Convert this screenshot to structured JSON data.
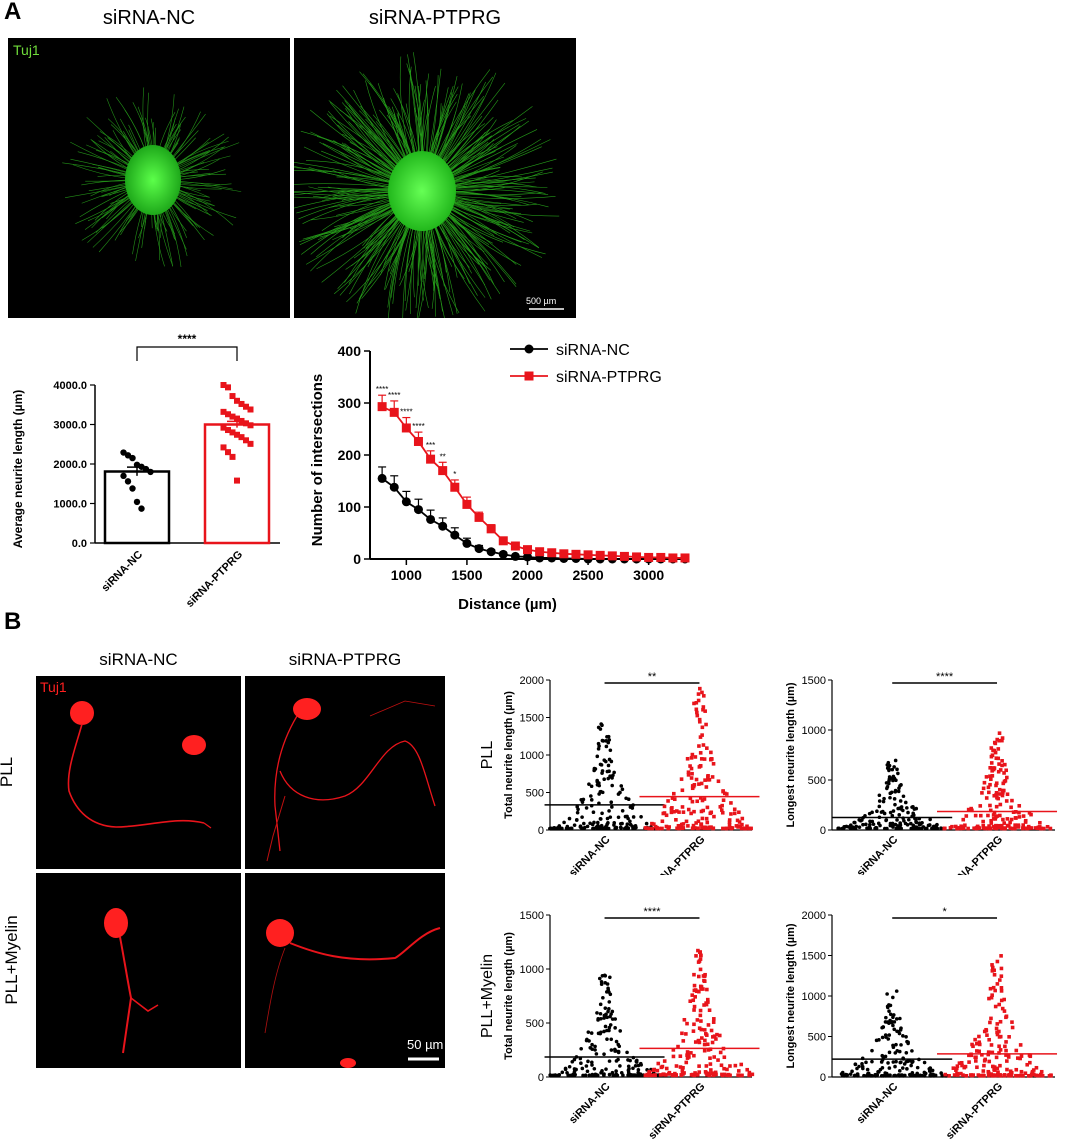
{
  "panels": {
    "A": {
      "letter": "A",
      "images": [
        {
          "title": "siRNA-NC",
          "stain": "Tuj1"
        },
        {
          "title": "siRNA-PTPRG",
          "scale_bar": "500 µm"
        }
      ]
    },
    "B": {
      "letter": "B",
      "columns": [
        "siRNA-NC",
        "siRNA-PTPRG"
      ],
      "rows": [
        "PLL",
        "PLL+Myelin"
      ],
      "stain": "Tuj1",
      "scale_bar": "50 µm"
    }
  },
  "colors": {
    "nc": "#000000",
    "ptprg": "#e8141b",
    "tuj1_green": "#35d12a",
    "tuj1_red": "#e8141b"
  },
  "chart_data": [
    {
      "id": "bar",
      "type": "bar",
      "ylabel": "Average neurite length (µm)",
      "categories": [
        "siRNA-NC",
        "siRNA-PTPRG"
      ],
      "values": [
        1810,
        3000
      ],
      "sem": [
        110,
        80
      ],
      "ylim": [
        0,
        4000
      ],
      "yticks": [
        "0.0",
        "1000.0",
        "2000.0",
        "3000.0",
        "4000.0"
      ],
      "significance": "****",
      "points_nc": [
        2290,
        2220,
        2150,
        1980,
        1930,
        1870,
        1800,
        1700,
        1560,
        1380,
        1040,
        870
      ],
      "points_ptprg": [
        4000,
        3940,
        3720,
        3600,
        3520,
        3450,
        3380,
        3320,
        3260,
        3200,
        3150,
        3090,
        3030,
        2980,
        2920,
        2860,
        2800,
        2740,
        2680,
        2600,
        2510,
        2420,
        2300,
        2180,
        1580
      ]
    },
    {
      "id": "sholl",
      "type": "line",
      "xlabel": "Distance (µm)",
      "ylabel": "Number of intersections",
      "xlim": [
        700,
        3300
      ],
      "ylim": [
        0,
        400
      ],
      "xticks": [
        "1000",
        "1500",
        "2000",
        "2500",
        "3000"
      ],
      "yticks": [
        "0",
        "100",
        "200",
        "300",
        "400"
      ],
      "x": [
        800,
        900,
        1000,
        1100,
        1200,
        1300,
        1400,
        1500,
        1600,
        1700,
        1800,
        1900,
        2000,
        2100,
        2200,
        2300,
        2400,
        2500,
        2600,
        2700,
        2800,
        2900,
        3000,
        3100,
        3200,
        3300
      ],
      "series": [
        {
          "name": "siRNA-NC",
          "values": [
            155,
            138,
            110,
            95,
            76,
            63,
            46,
            30,
            20,
            14,
            9,
            5,
            4,
            2,
            2,
            1,
            1,
            0,
            0,
            0,
            0,
            0,
            0,
            0,
            0,
            0
          ],
          "err": [
            22,
            22,
            20,
            20,
            18,
            16,
            14,
            10,
            6,
            4,
            3,
            2,
            2,
            1,
            1,
            1,
            0,
            0,
            0,
            0,
            0,
            0,
            0,
            0,
            0,
            0
          ]
        },
        {
          "name": "siRNA-PTPRG",
          "values": [
            293,
            282,
            252,
            226,
            192,
            170,
            138,
            105,
            80,
            58,
            35,
            25,
            18,
            14,
            12,
            10,
            9,
            8,
            7,
            6,
            5,
            4,
            3,
            3,
            2,
            2
          ],
          "err": [
            22,
            22,
            20,
            18,
            16,
            16,
            14,
            14,
            10,
            8,
            6,
            4,
            3,
            3,
            2,
            2,
            2,
            1,
            1,
            1,
            1,
            1,
            1,
            1,
            1,
            1
          ]
        }
      ],
      "annotations": [
        "****",
        "****",
        "****",
        "****",
        "***",
        "**",
        "*"
      ]
    },
    {
      "id": "pll_total",
      "type": "scatter",
      "ylabel": "Total neurite length (µm)",
      "row_label": "PLL",
      "categories": [
        "siRNA-NC",
        "siRNA-PTPRG"
      ],
      "ylim": [
        0,
        2000
      ],
      "yticks": [
        "0",
        "500",
        "1000",
        "1500",
        "2000"
      ],
      "means": [
        335,
        445
      ],
      "significance": "**",
      "ranges": [
        [
          20,
          1420
        ],
        [
          20,
          1900
        ]
      ]
    },
    {
      "id": "pll_longest",
      "type": "scatter",
      "ylabel": "Longest neurite length (µm)",
      "categories": [
        "siRNA-NC",
        "siRNA-PTPRG"
      ],
      "ylim": [
        0,
        1500
      ],
      "yticks": [
        "0",
        "500",
        "1000",
        "1500"
      ],
      "means": [
        125,
        185
      ],
      "significance": "****",
      "ranges": [
        [
          15,
          720
        ],
        [
          15,
          970
        ]
      ]
    },
    {
      "id": "myelin_total",
      "type": "scatter",
      "ylabel": "Total neurite length (µm)",
      "row_label": "PLL+Myelin",
      "categories": [
        "siRNA-NC",
        "siRNA-PTPRG"
      ],
      "ylim": [
        0,
        1500
      ],
      "yticks": [
        "0",
        "500",
        "1000",
        "1500"
      ],
      "means": [
        185,
        265
      ],
      "significance": "****",
      "ranges": [
        [
          15,
          960
        ],
        [
          15,
          1180
        ]
      ]
    },
    {
      "id": "myelin_longest",
      "type": "scatter",
      "ylabel": "Longest neurite length (µm)",
      "categories": [
        "siRNA-NC",
        "siRNA-PTPRG"
      ],
      "ylim": [
        0,
        2000
      ],
      "yticks": [
        "0",
        "500",
        "1000",
        "1500",
        "2000"
      ],
      "means": [
        220,
        285
      ],
      "significance": "*",
      "ranges": [
        [
          15,
          1090
        ],
        [
          15,
          1500
        ]
      ]
    }
  ]
}
